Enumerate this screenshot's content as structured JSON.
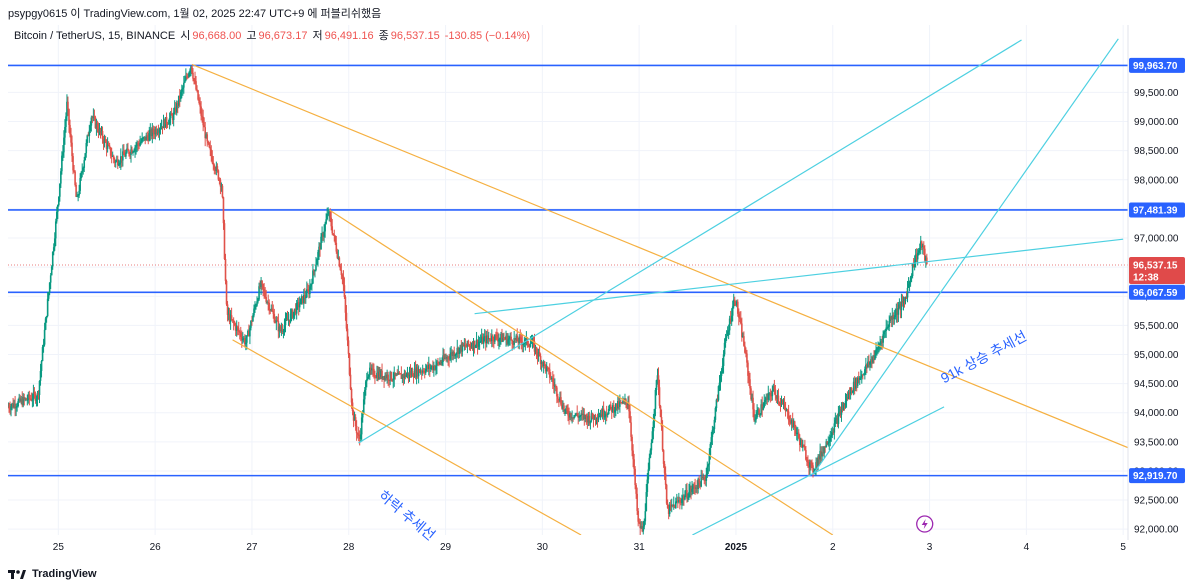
{
  "header": {
    "top_text": "psypgy0615 이 TradingView.com, 1월 02, 2025 22:47 UTC+9 에 퍼블리쉬했음",
    "symbol": "Bitcoin / TetherUS, 15, BINANCE",
    "open_label": "시",
    "open": "96,668.00",
    "high_label": "고",
    "high": "96,673.17",
    "low_label": "저",
    "low": "96,491.16",
    "close_label": "종",
    "close": "96,537.15",
    "change": "-130.85 (−0.14%)"
  },
  "footer": {
    "brand": "TradingView"
  },
  "colors": {
    "level": "#2962ff",
    "trend_orange": "#f5b041",
    "trend_cyan": "#4dd0e1",
    "up": "#089981",
    "down": "#e0524a",
    "price_badge": "#e04a4a"
  },
  "icons": {
    "flash": "lightning-icon"
  },
  "chart_data": {
    "type": "candlestick",
    "y_axis": {
      "min": 91900,
      "max": 100400,
      "ticks": [
        "99,500.00",
        "99,000.00",
        "98,500.00",
        "98,000.00",
        "97,500.00",
        "97,000.00",
        "96,500.00",
        "96,000.00",
        "95,500.00",
        "95,000.00",
        "94,500.00",
        "94,000.00",
        "93,500.00",
        "93,000.00",
        "92,500.00",
        "92,000.00"
      ],
      "tick_values": [
        99500,
        99000,
        98500,
        98000,
        97500,
        97000,
        96500,
        96000,
        95500,
        95000,
        94500,
        94000,
        93500,
        93000,
        92500,
        92000
      ]
    },
    "x_axis": {
      "ticks": [
        "25",
        "26",
        "27",
        "28",
        "29",
        "30",
        "31",
        "2025",
        "2",
        "3",
        "4",
        "5"
      ],
      "tick_days": [
        0,
        1,
        2,
        3,
        4,
        5,
        6,
        7,
        8,
        9,
        10,
        11
      ],
      "min_day": -0.52,
      "max_day": 11.05
    },
    "levels": [
      {
        "value": 99963.7,
        "label": "99,963.70"
      },
      {
        "value": 97481.39,
        "label": "97,481.39"
      },
      {
        "value": 96067.59,
        "label": "96,067.59"
      },
      {
        "value": 92919.7,
        "label": "92,919.70"
      }
    ],
    "current_price": {
      "value": 96537.15,
      "label": "96,537.15",
      "countdown": "12:38"
    },
    "annotations": [
      {
        "text": "하락 추세선",
        "day": 3.3,
        "price": 92550,
        "angle": 40
      },
      {
        "text": "91k 상승 추세선",
        "day": 9.15,
        "price": 94500,
        "angle": -28
      }
    ],
    "trendlines": [
      {
        "color": "orange",
        "from": [
          1.38,
          99980
        ],
        "to": [
          11.05,
          93400
        ]
      },
      {
        "color": "orange",
        "from": [
          2.8,
          97480
        ],
        "to": [
          8.0,
          91900
        ]
      },
      {
        "color": "orange",
        "from": [
          1.8,
          95250
        ],
        "to": [
          5.4,
          91900
        ]
      },
      {
        "color": "cyan",
        "from": [
          3.1,
          93480
        ],
        "to": [
          9.95,
          100400
        ]
      },
      {
        "color": "cyan",
        "from": [
          4.3,
          95700
        ],
        "to": [
          11.0,
          96980
        ]
      },
      {
        "color": "cyan",
        "from": [
          7.8,
          92950
        ],
        "to": [
          10.95,
          100420
        ]
      },
      {
        "color": "cyan",
        "from": [
          6.55,
          91900
        ],
        "to": [
          9.15,
          94100
        ]
      }
    ],
    "price_path": [
      [
        -0.52,
        94100
      ],
      [
        -0.2,
        94300
      ],
      [
        0.0,
        97500
      ],
      [
        0.1,
        99300
      ],
      [
        0.2,
        97600
      ],
      [
        0.35,
        99100
      ],
      [
        0.6,
        98300
      ],
      [
        0.9,
        98700
      ],
      [
        1.2,
        99100
      ],
      [
        1.38,
        99980
      ],
      [
        1.55,
        98600
      ],
      [
        1.7,
        97900
      ],
      [
        1.75,
        95700
      ],
      [
        1.95,
        95200
      ],
      [
        2.1,
        96200
      ],
      [
        2.3,
        95400
      ],
      [
        2.6,
        96100
      ],
      [
        2.8,
        97450
      ],
      [
        2.95,
        96300
      ],
      [
        3.05,
        94000
      ],
      [
        3.12,
        93500
      ],
      [
        3.2,
        94700
      ],
      [
        3.5,
        94600
      ],
      [
        3.9,
        94800
      ],
      [
        4.15,
        95100
      ],
      [
        4.5,
        95300
      ],
      [
        4.9,
        95200
      ],
      [
        5.1,
        94600
      ],
      [
        5.25,
        94000
      ],
      [
        5.5,
        93900
      ],
      [
        5.9,
        94200
      ],
      [
        6.0,
        92100
      ],
      [
        6.05,
        91950
      ],
      [
        6.2,
        94700
      ],
      [
        6.3,
        92300
      ],
      [
        6.5,
        92600
      ],
      [
        6.7,
        92900
      ],
      [
        6.9,
        95200
      ],
      [
        7.0,
        96000
      ],
      [
        7.1,
        95100
      ],
      [
        7.2,
        93900
      ],
      [
        7.4,
        94400
      ],
      [
        7.6,
        93800
      ],
      [
        7.8,
        93000
      ],
      [
        7.95,
        93500
      ],
      [
        8.2,
        94400
      ],
      [
        8.45,
        95000
      ],
      [
        8.6,
        95600
      ],
      [
        8.75,
        95900
      ],
      [
        8.85,
        96600
      ],
      [
        8.93,
        96900
      ],
      [
        8.98,
        96537
      ]
    ]
  }
}
